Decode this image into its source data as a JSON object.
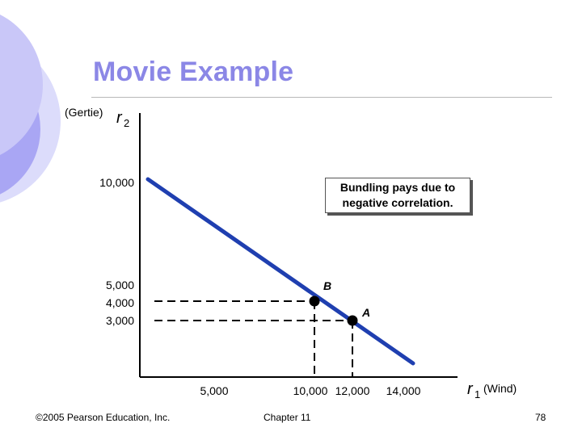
{
  "slide": {
    "title": "Movie Example",
    "callout": "Bundling pays due to negative correlation.",
    "footer_left": "©2005 Pearson Education, Inc.",
    "footer_center": "Chapter 11",
    "footer_right": "78"
  },
  "colors": {
    "title": "#8b87e6",
    "line": "#1f3fb0",
    "deco_light": "#dcdcfb",
    "deco_mid": "#a9a6f4"
  },
  "axes": {
    "y_paren": "(Gertie)",
    "y_symbol": "r",
    "y_sub": "2",
    "x_symbol": "r",
    "x_sub": "1",
    "x_paren": "(Wind)",
    "y_ticks": [
      {
        "value": 10000,
        "label": "10,000"
      },
      {
        "value": 5000,
        "label": "5,000"
      },
      {
        "value": 4000,
        "label": "4,000"
      },
      {
        "value": 3000,
        "label": "3,000"
      }
    ],
    "x_ticks": [
      {
        "value": 5000,
        "label": "5,000"
      },
      {
        "value": 10000,
        "label": "10,000"
      },
      {
        "value": 12000,
        "label": "12,000"
      },
      {
        "value": 14000,
        "label": "14,000"
      }
    ]
  },
  "chart_data": {
    "type": "line",
    "grid": false,
    "line": {
      "x": [
        0,
        15000
      ],
      "y": [
        10000,
        0
      ]
    },
    "points": [
      {
        "label": "B",
        "x": 10000,
        "y": 4000
      },
      {
        "label": "A",
        "x": 12000,
        "y": 3000
      }
    ],
    "guides": "dashed lines from points to both axes"
  }
}
